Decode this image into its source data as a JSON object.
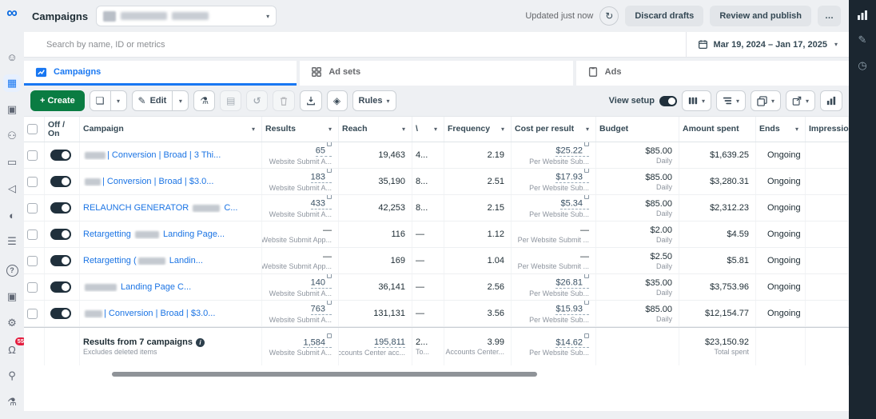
{
  "topbar": {
    "title": "Campaigns",
    "updated": "Updated just now",
    "discard_label": "Discard drafts",
    "review_label": "Review and publish",
    "more_label": "…"
  },
  "search": {
    "placeholder": "Search by name, ID or metrics"
  },
  "daterange": {
    "label": "Mar 19, 2024 – Jan 17, 2025"
  },
  "tabs": [
    {
      "label": "Campaigns",
      "active": true
    },
    {
      "label": "Ad sets",
      "active": false
    },
    {
      "label": "Ads",
      "active": false
    }
  ],
  "toolbar": {
    "create_label": "+ Create",
    "edit_label": "Edit",
    "rules_label": "Rules",
    "view_setup_label": "View setup"
  },
  "rail": {
    "notification_count": "55"
  },
  "icons": {
    "infinity_logo": "∞",
    "caret": "▾",
    "refresh": "↻",
    "copy": "❏",
    "edit": "✎",
    "flask": "⚗",
    "clipboard": "▤",
    "undo": "↺",
    "tag": "◈",
    "info": "i",
    "face": "☺",
    "grid": "▦",
    "frames": "▣",
    "people": "⚇",
    "card": "▭",
    "megaphone": "◁",
    "split": "◐",
    "menu": "☰",
    "help": "?",
    "gear": "⚙",
    "bell": "Ω",
    "magnify": "⚲",
    "testtube": "⚗",
    "pencil": "✎",
    "clock": "◷"
  },
  "table": {
    "headers": [
      "Off / On",
      "Campaign",
      "Results",
      "Reach",
      "\\",
      "Frequency",
      "Cost per result",
      "Budget",
      "Amount spent",
      "Ends",
      "Impressio"
    ],
    "rows": [
      {
        "name_parts": [
          {
            "blur": 26
          },
          {
            "text": "| Conversion | Broad | 3 Thi..."
          }
        ],
        "results": "65",
        "results_sub": "Website Submit A...",
        "results_mark": true,
        "reach": "19,463",
        "c5": "4...",
        "freq": "2.19",
        "cpr": "$25.22",
        "cpr_sub": "Per Website Sub...",
        "cpr_mark": true,
        "budget": "$85.00",
        "budget_sub": "Daily",
        "spent": "$1,639.25",
        "ends": "Ongoing"
      },
      {
        "name_parts": [
          {
            "blur": 20
          },
          {
            "text": "| Conversion | Broad | $3.0..."
          }
        ],
        "results": "183",
        "results_sub": "Website Submit A...",
        "results_mark": true,
        "reach": "35,190",
        "c5": "8...",
        "freq": "2.51",
        "cpr": "$17.93",
        "cpr_sub": "Per Website Sub...",
        "cpr_mark": true,
        "budget": "$85.00",
        "budget_sub": "Daily",
        "spent": "$3,280.31",
        "ends": "Ongoing"
      },
      {
        "name_parts": [
          {
            "text": "RELAUNCH GENERATOR "
          },
          {
            "blur": 34
          },
          {
            "text": " C..."
          }
        ],
        "results": "433",
        "results_sub": "Website Submit A...",
        "results_mark": true,
        "reach": "42,253",
        "c5": "8...",
        "freq": "2.15",
        "cpr": "$5.34",
        "cpr_sub": "Per Website Sub...",
        "cpr_mark": true,
        "budget": "$85.00",
        "budget_sub": "Daily",
        "spent": "$2,312.23",
        "ends": "Ongoing"
      },
      {
        "name_parts": [
          {
            "text": "Retargetting "
          },
          {
            "blur": 30
          },
          {
            "text": " Landing Page..."
          }
        ],
        "results": "—",
        "results_sub": "Website Submit App...",
        "results_mark": false,
        "reach": "116",
        "c5": "—",
        "freq": "1.12",
        "cpr": "—",
        "cpr_sub": "Per Website Submit ...",
        "cpr_mark": false,
        "budget": "$2.00",
        "budget_sub": "Daily",
        "spent": "$4.59",
        "ends": "Ongoing"
      },
      {
        "name_parts": [
          {
            "text": "Retargetting ("
          },
          {
            "blur": 34
          },
          {
            "text": " Landin..."
          }
        ],
        "results": "—",
        "results_sub": "Website Submit App...",
        "results_mark": false,
        "reach": "169",
        "c5": "—",
        "freq": "1.04",
        "cpr": "—",
        "cpr_sub": "Per Website Submit ...",
        "cpr_mark": false,
        "budget": "$2.50",
        "budget_sub": "Daily",
        "spent": "$5.81",
        "ends": "Ongoing"
      },
      {
        "name_parts": [
          {
            "blur": 40
          },
          {
            "text": " Landing Page C..."
          }
        ],
        "results": "140",
        "results_sub": "Website Submit A...",
        "results_mark": true,
        "reach": "36,141",
        "c5": "—",
        "freq": "2.56",
        "cpr": "$26.81",
        "cpr_sub": "Per Website Sub...",
        "cpr_mark": true,
        "budget": "$35.00",
        "budget_sub": "Daily",
        "spent": "$3,753.96",
        "ends": "Ongoing"
      },
      {
        "name_parts": [
          {
            "blur": 22
          },
          {
            "text": "| Conversion | Broad | $3.0..."
          }
        ],
        "results": "763",
        "results_sub": "Website Submit A...",
        "results_mark": true,
        "reach": "131,131",
        "c5": "—",
        "freq": "3.56",
        "cpr": "$15.93",
        "cpr_sub": "Per Website Sub...",
        "cpr_mark": true,
        "budget": "$85.00",
        "budget_sub": "Daily",
        "spent": "$12,154.77",
        "ends": "Ongoing"
      }
    ],
    "summary": {
      "title": "Results from 7 campaigns",
      "note": "Excludes deleted items",
      "results": "1,584",
      "results_sub": "Website Submit A...",
      "reach": "195,811",
      "reach_sub": "Accounts Center acc...",
      "c5": "2...",
      "c5_sub": "To...",
      "freq": "3.99",
      "freq_sub": "Per Accounts Center...",
      "cpr": "$14.62",
      "cpr_sub": "Per Website Sub...",
      "spent": "$23,150.92",
      "spent_sub": "Total spent"
    }
  }
}
